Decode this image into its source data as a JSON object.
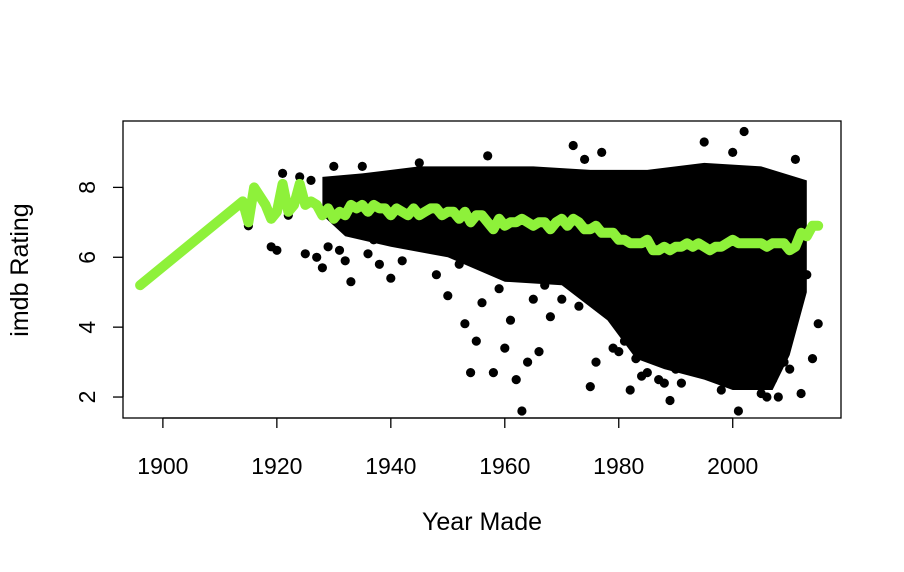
{
  "chart_data": {
    "type": "scatter",
    "title": "",
    "xlabel": "Year Made",
    "ylabel": "imdb Rating",
    "xlim": [
      1893,
      2019
    ],
    "ylim": [
      1.4,
      9.9
    ],
    "xticks": [
      1900,
      1920,
      1940,
      1960,
      1980,
      2000
    ],
    "yticks": [
      2,
      4,
      6,
      8
    ],
    "grid": false,
    "legend": "none",
    "colors": {
      "points": "#000000",
      "trend": "#8ef13a"
    },
    "series": [
      {
        "kind": "points",
        "x": [
          1896,
          1914,
          1915,
          1916,
          1919,
          1920,
          1921,
          1922,
          1924,
          1925,
          1926,
          1927,
          1928,
          1929,
          1930,
          1931,
          1932,
          1933,
          1934,
          1935,
          1936,
          1937,
          1938,
          1940,
          1942,
          1945,
          1948,
          1950,
          1952,
          1953,
          1954,
          1955,
          1956,
          1957,
          1958,
          1959,
          1960,
          1961,
          1962,
          1963,
          1964,
          1965,
          1966,
          1967,
          1968,
          1970,
          1972,
          1973,
          1974,
          1975,
          1976,
          1977,
          1978,
          1979,
          1980,
          1981,
          1982,
          1983,
          1984,
          1985,
          1986,
          1987,
          1988,
          1989,
          1990,
          1991,
          1992,
          1993,
          1994,
          1995,
          1996,
          1997,
          1998,
          1999,
          2000,
          2001,
          2002,
          2003,
          2004,
          2005,
          2006,
          2007,
          2008,
          2009,
          2010,
          2011,
          2012,
          2013,
          2014,
          2015
        ],
        "y": [
          5.2,
          7.6,
          6.9,
          7.9,
          6.3,
          6.2,
          8.4,
          7.2,
          8.3,
          6.1,
          8.2,
          6.0,
          5.7,
          6.3,
          8.6,
          6.2,
          5.9,
          5.3,
          8.0,
          8.6,
          6.1,
          6.5,
          5.8,
          5.4,
          5.9,
          8.7,
          5.5,
          4.9,
          5.8,
          4.1,
          2.7,
          3.6,
          4.7,
          8.9,
          2.7,
          5.1,
          3.4,
          4.2,
          2.5,
          1.6,
          3.0,
          4.8,
          3.3,
          5.2,
          4.3,
          4.8,
          9.2,
          4.6,
          8.8,
          2.3,
          3.0,
          9.0,
          4.6,
          3.4,
          3.3,
          3.6,
          2.2,
          3.1,
          2.6,
          2.7,
          4.0,
          2.5,
          2.4,
          1.9,
          2.8,
          2.4,
          3.1,
          3.5,
          2.9,
          9.3,
          2.8,
          3.0,
          2.2,
          3.3,
          9.0,
          1.6,
          9.6,
          2.6,
          2.9,
          2.1,
          2.0,
          2.5,
          2.0,
          3.0,
          2.8,
          8.8,
          2.1,
          5.5,
          3.1,
          4.1
        ]
      },
      {
        "kind": "line",
        "x": [
          1896,
          1914,
          1915,
          1916,
          1918,
          1919,
          1920,
          1921,
          1922,
          1923,
          1924,
          1925,
          1926,
          1927,
          1928,
          1929,
          1930,
          1931,
          1932,
          1933,
          1934,
          1935,
          1936,
          1937,
          1938,
          1939,
          1940,
          1941,
          1942,
          1943,
          1944,
          1945,
          1946,
          1947,
          1948,
          1949,
          1950,
          1951,
          1952,
          1953,
          1954,
          1955,
          1956,
          1957,
          1958,
          1959,
          1960,
          1961,
          1962,
          1963,
          1964,
          1965,
          1966,
          1967,
          1968,
          1969,
          1970,
          1971,
          1972,
          1973,
          1974,
          1975,
          1976,
          1977,
          1978,
          1979,
          1980,
          1981,
          1982,
          1983,
          1984,
          1985,
          1986,
          1987,
          1988,
          1989,
          1990,
          1991,
          1992,
          1993,
          1994,
          1995,
          1996,
          1997,
          1998,
          1999,
          2000,
          2001,
          2002,
          2003,
          2004,
          2005,
          2006,
          2007,
          2008,
          2009,
          2010,
          2011,
          2012,
          2013,
          2014,
          2015
        ],
        "y": [
          5.2,
          7.6,
          7.0,
          8.0,
          7.5,
          7.1,
          7.3,
          8.1,
          7.3,
          7.5,
          8.1,
          7.5,
          7.6,
          7.5,
          7.2,
          7.4,
          7.1,
          7.3,
          7.2,
          7.5,
          7.4,
          7.5,
          7.3,
          7.5,
          7.4,
          7.4,
          7.2,
          7.4,
          7.3,
          7.2,
          7.4,
          7.2,
          7.3,
          7.4,
          7.4,
          7.2,
          7.3,
          7.3,
          7.1,
          7.3,
          7.0,
          7.2,
          7.2,
          7.0,
          6.8,
          7.1,
          6.9,
          7.0,
          7.0,
          7.1,
          7.0,
          6.9,
          7.0,
          7.0,
          6.8,
          7.0,
          7.1,
          6.9,
          7.1,
          7.0,
          6.8,
          6.8,
          6.9,
          6.7,
          6.7,
          6.7,
          6.5,
          6.5,
          6.4,
          6.4,
          6.4,
          6.5,
          6.2,
          6.2,
          6.3,
          6.2,
          6.3,
          6.3,
          6.4,
          6.3,
          6.4,
          6.3,
          6.2,
          6.3,
          6.3,
          6.4,
          6.5,
          6.4,
          6.4,
          6.4,
          6.4,
          6.4,
          6.3,
          6.4,
          6.4,
          6.4,
          6.2,
          6.3,
          6.7,
          6.6,
          6.9,
          6.9
        ]
      }
    ]
  }
}
